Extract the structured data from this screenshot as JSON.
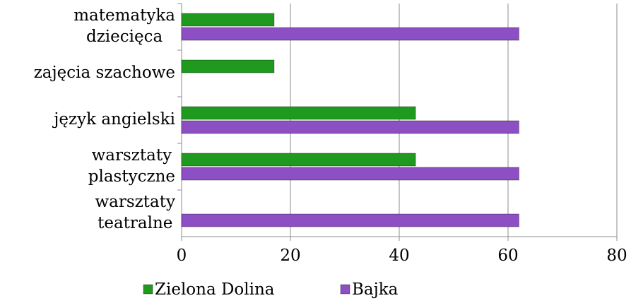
{
  "chart_data": {
    "type": "bar",
    "orientation": "horizontal",
    "categories": [
      "matematyka\ndziecięca",
      "zajęcia szachowe",
      "język angielski",
      "warsztaty\nplastyczne",
      "warsztaty\nteatralne"
    ],
    "series": [
      {
        "name": "Zielona Dolina",
        "color": "#1f9a1f",
        "values": [
          17,
          17,
          43,
          43,
          0
        ]
      },
      {
        "name": "Bajka",
        "color": "#8d4fc4",
        "values": [
          62,
          0,
          62,
          62,
          62
        ]
      }
    ],
    "xlim": [
      0,
      80
    ],
    "xticks": [
      0,
      20,
      40,
      60,
      80
    ],
    "grid": true,
    "legend": "bottom"
  }
}
